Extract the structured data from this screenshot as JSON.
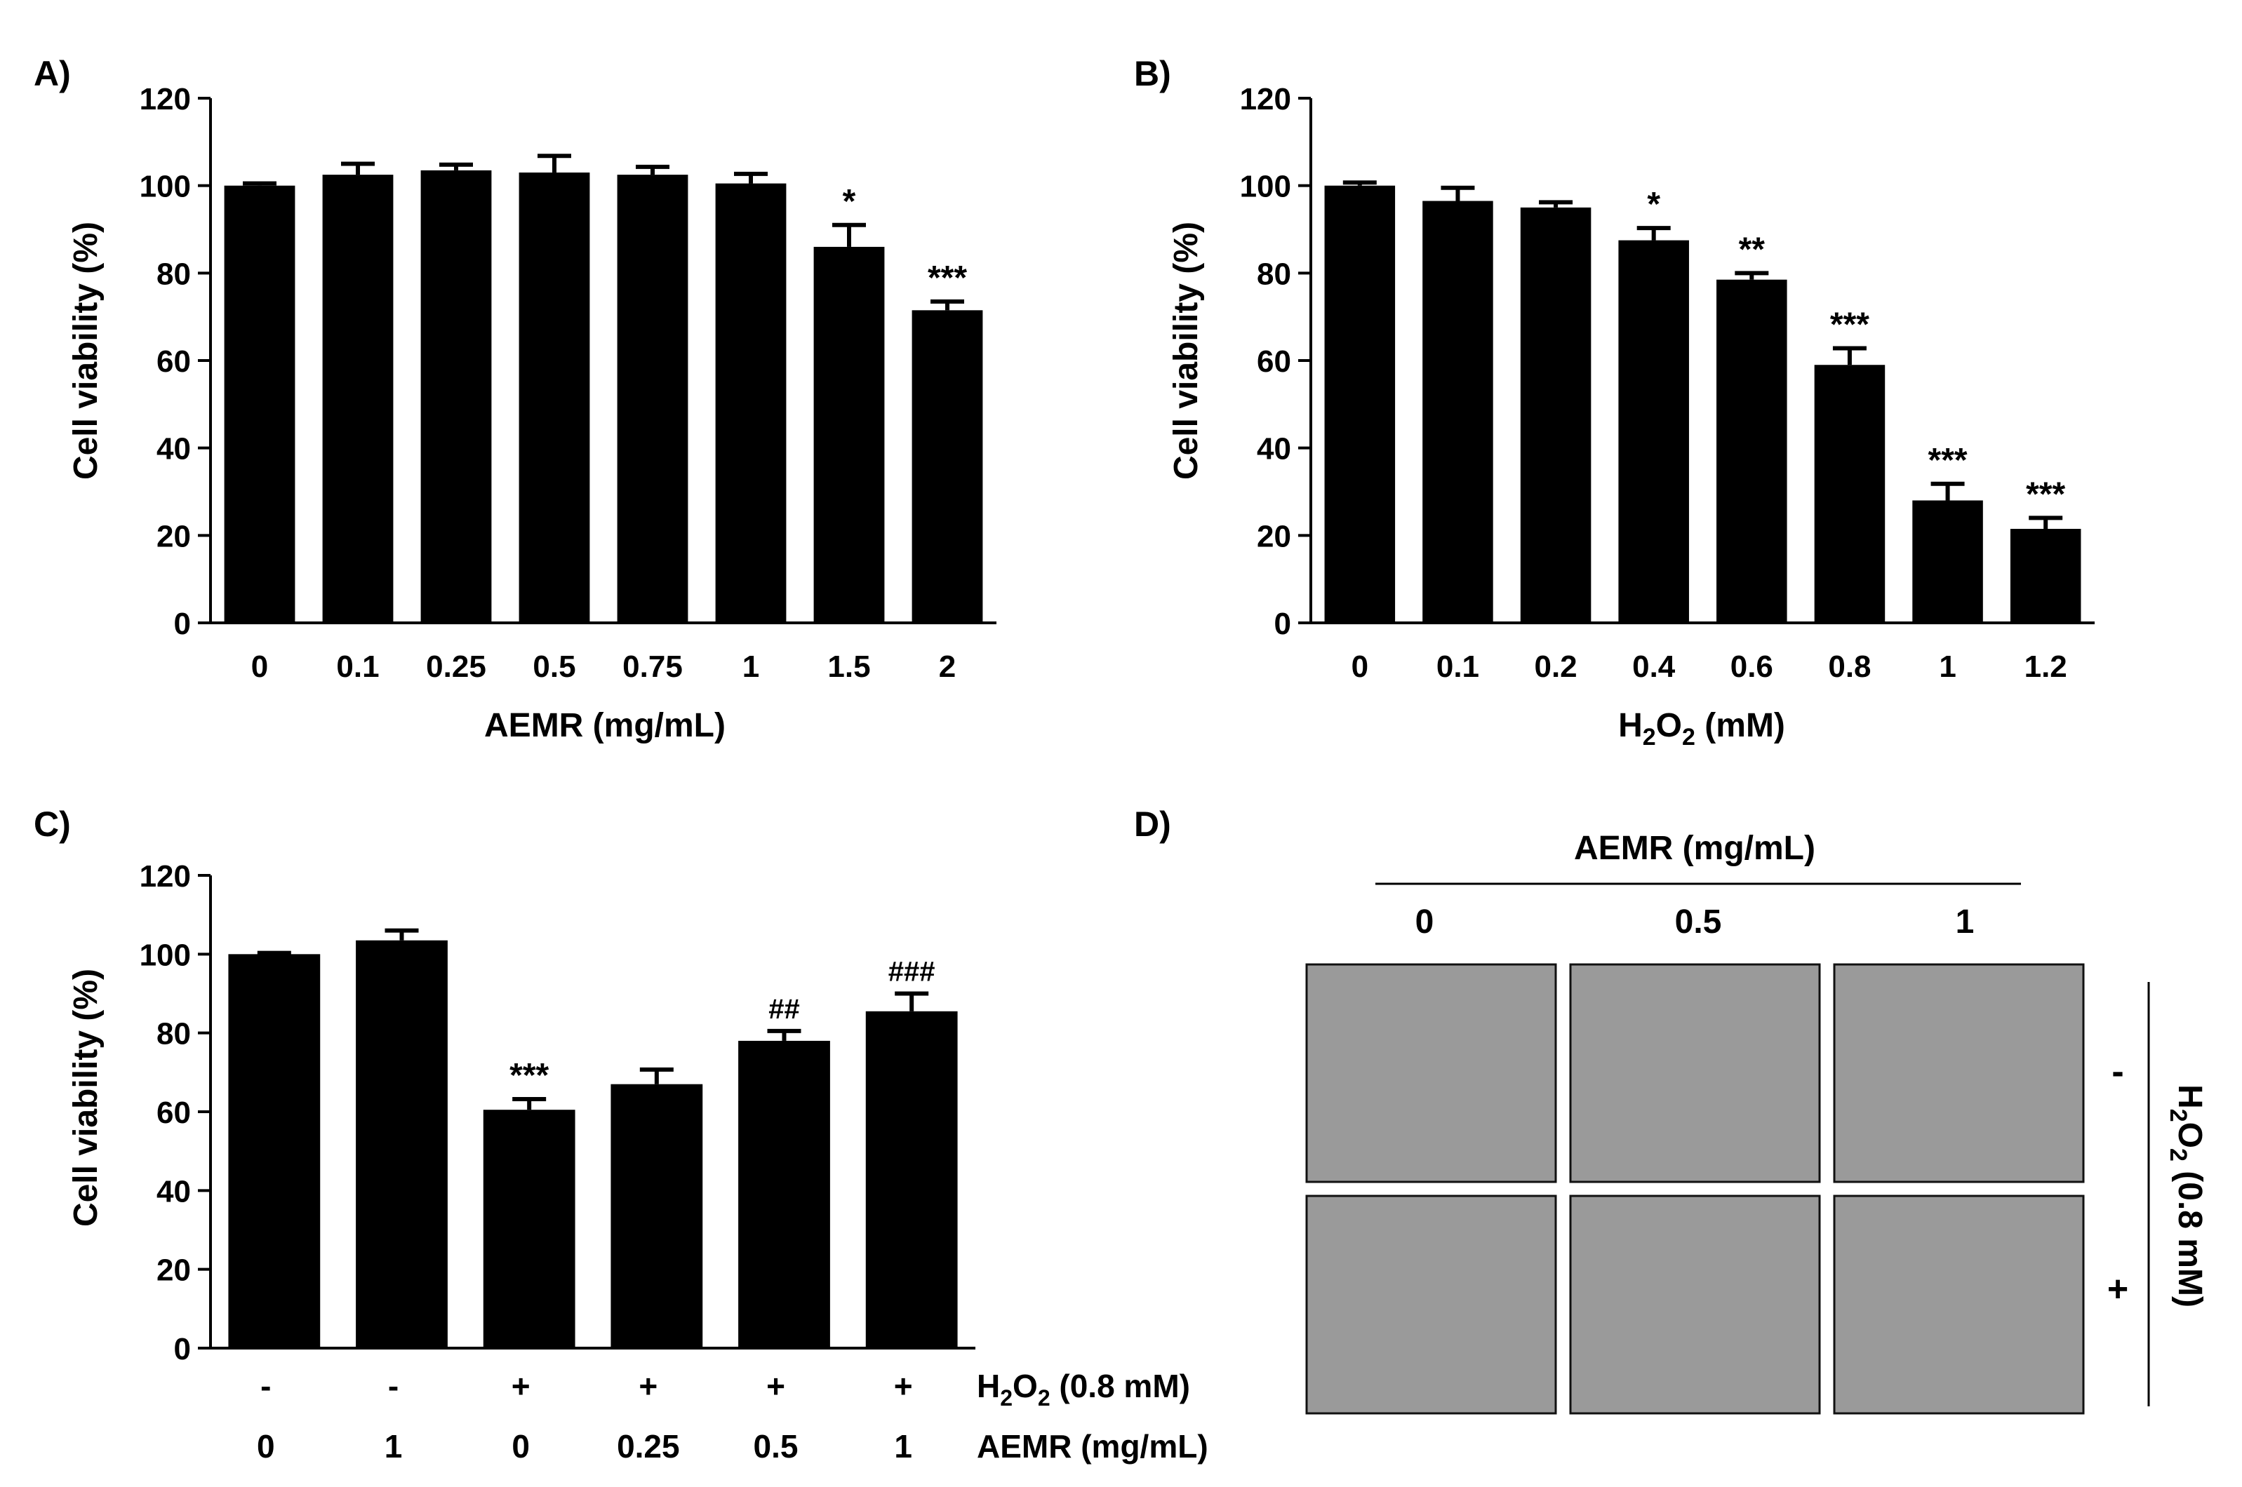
{
  "chart_data": [
    {
      "panel": "A)",
      "type": "bar",
      "categories": [
        "0",
        "0.1",
        "0.25",
        "0.5",
        "0.75",
        "1",
        "1.5",
        "2"
      ],
      "values": [
        100,
        102.5,
        103.5,
        103,
        102.5,
        100.5,
        86,
        71.5
      ],
      "errors": [
        0.5,
        2.5,
        1.3,
        3.8,
        1.8,
        2.2,
        5,
        2
      ],
      "annotations": [
        "",
        "",
        "",
        "",
        "",
        "",
        "*",
        "***"
      ],
      "xlabel": "AEMR (mg/mL)",
      "ylabel": "Cell viability (%)",
      "ylim": [
        0,
        120
      ],
      "yticks": [
        "0",
        "20",
        "40",
        "60",
        "80",
        "100",
        "120"
      ],
      "color": "#000000"
    },
    {
      "panel": "B)",
      "type": "bar",
      "categories": [
        "0",
        "0.1",
        "0.2",
        "0.4",
        "0.6",
        "0.8",
        "1",
        "1.2"
      ],
      "values": [
        100,
        96.5,
        95,
        87.5,
        78.5,
        59,
        28,
        21.5
      ],
      "errors": [
        0.7,
        3,
        1.2,
        2.8,
        1.5,
        3.8,
        3.8,
        2.5
      ],
      "annotations": [
        "",
        "",
        "",
        "*",
        "**",
        "***",
        "***",
        "***"
      ],
      "xlabel_parts": [
        "H",
        "2",
        "O",
        "2",
        " (mM)"
      ],
      "ylabel": "Cell viability (%)",
      "ylim": [
        0,
        120
      ],
      "yticks": [
        "0",
        "20",
        "40",
        "60",
        "80",
        "100",
        "120"
      ],
      "color": "#000000"
    },
    {
      "panel": "C)",
      "type": "bar",
      "categories": [
        "0",
        "1",
        "0",
        "0.25",
        "0.5",
        "1"
      ],
      "values": [
        100,
        103.5,
        60.5,
        67,
        78,
        85.5
      ],
      "errors": [
        0.3,
        2.5,
        2.7,
        3.7,
        2.5,
        4.5
      ],
      "annotations": [
        "",
        "",
        "***",
        "",
        "##",
        "###"
      ],
      "h2o2_row": [
        "-",
        "-",
        "+",
        "+",
        "+",
        "+"
      ],
      "h2o2_label_parts": [
        "H",
        "2",
        "O",
        "2",
        " (0.8 mM)"
      ],
      "aemr_row": [
        "0",
        "1",
        "0",
        "0.25",
        "0.5",
        "1"
      ],
      "aemr_label": "AEMR (mg/mL)",
      "ylabel": "Cell viability (%)",
      "ylim": [
        0,
        120
      ],
      "yticks": [
        "0",
        "20",
        "40",
        "60",
        "80",
        "100",
        "120"
      ],
      "color": "#000000"
    }
  ],
  "panel_d": {
    "panel": "D)",
    "header": "AEMR (mg/mL)",
    "columns": [
      "0",
      "0.5",
      "1"
    ],
    "rows": [
      "-",
      "+"
    ],
    "side_label_parts": [
      "H",
      "2",
      "O",
      "2",
      " (0.8 mM)"
    ],
    "image_fill": "#9a9a9a"
  }
}
